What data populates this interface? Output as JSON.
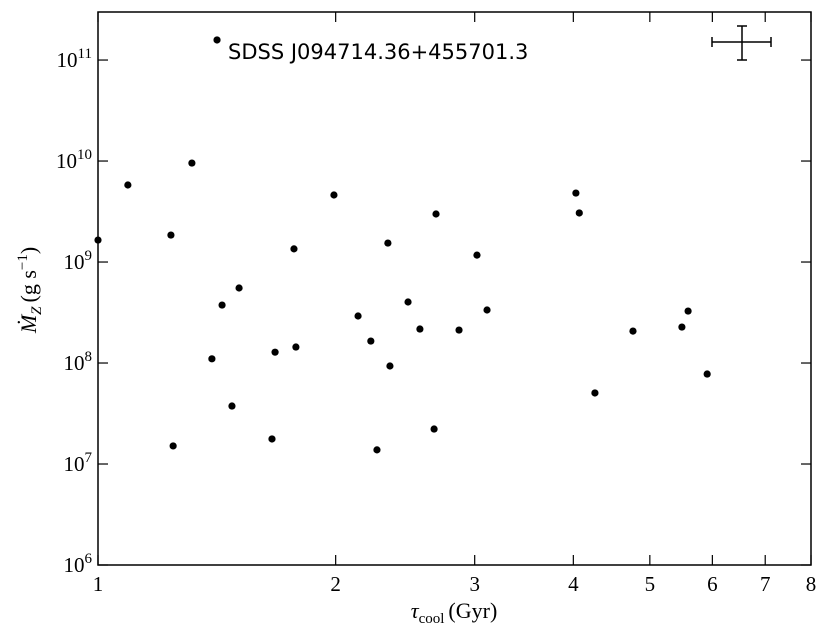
{
  "chart_data": {
    "type": "scatter",
    "annotation": "SDSS J094714.36+455701.3",
    "x_label": {
      "symbol": "τ",
      "subscript": "cool",
      "unit": "(Gyr)"
    },
    "y_label": {
      "symbol": "Ṁ",
      "subscript": "Z",
      "unit": "(g s",
      "exponent": "−1",
      "close": ")"
    },
    "x_log": true,
    "y_log": true,
    "color": "#000000",
    "xlim": [
      1,
      8
    ],
    "xticks": [
      1,
      2,
      3,
      4,
      5,
      6,
      7,
      8
    ],
    "ylim": [
      1000000,
      299000000000
    ],
    "yticks": [
      {
        "value": 1000000,
        "label": "10",
        "exponent": "6"
      },
      {
        "value": 10000000,
        "label": "10",
        "exponent": "7"
      },
      {
        "value": 100000000,
        "label": "10",
        "exponent": "8"
      },
      {
        "value": 1000000000,
        "label": "10",
        "exponent": "9"
      },
      {
        "value": 10000000000,
        "label": "10",
        "exponent": "10"
      },
      {
        "value": 100000000000,
        "label": "10",
        "exponent": "11"
      }
    ],
    "x": [
      1.415,
      1.0,
      1.091,
      1.315,
      1.237,
      1.245,
      1.394,
      1.436,
      1.509,
      1.478,
      1.661,
      1.676,
      1.771,
      1.781,
      1.99,
      2.135,
      2.216,
      2.256,
      2.329,
      2.343,
      2.47,
      2.557,
      2.68,
      2.665,
      2.866,
      3.02,
      3.11,
      4.03,
      4.07,
      4.26,
      4.76,
      5.49,
      5.59,
      5.91
    ],
    "values": [
      158000000000,
      1650000000,
      5790000000,
      9550000000,
      1850000000,
      15100000,
      110000000,
      375000000,
      553000000,
      37500000,
      17700000,
      128000000,
      1350000000,
      144000000,
      4610000000,
      292000000,
      165000000,
      13800000,
      1540000000,
      93400000,
      402000000,
      217000000,
      2990000000,
      22200000,
      212000000,
      1170000000,
      335000000,
      4820000000,
      3060000000,
      50500000,
      207000000,
      227000000,
      327000000,
      77800000
    ]
  }
}
